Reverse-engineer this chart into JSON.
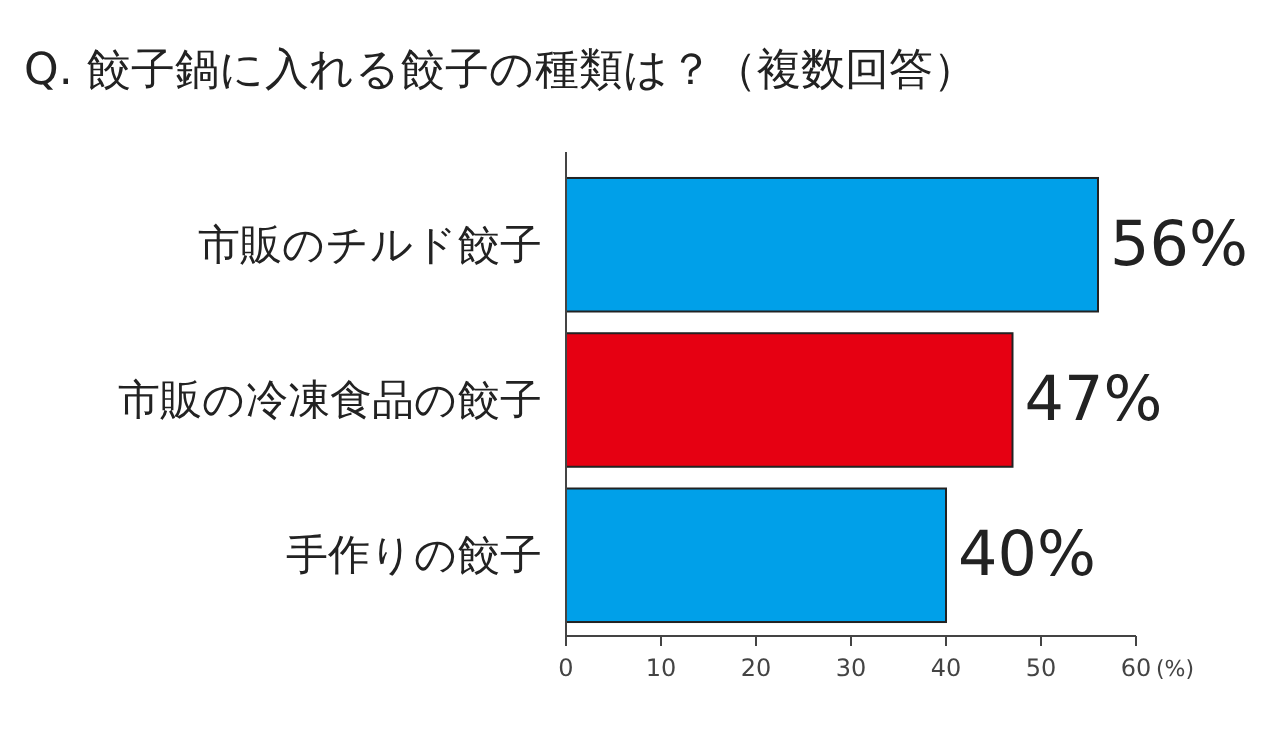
{
  "chart_data": {
    "type": "bar",
    "orientation": "horizontal",
    "title": "Q. 餃子鍋に入れる餃子の種類は？（複数回答）",
    "categories": [
      "市販のチルド餃子",
      "市販の冷凍食品の餃子",
      "手作りの餃子"
    ],
    "values": [
      56,
      47,
      40
    ],
    "colors": [
      "#00a0e9",
      "#e60012",
      "#00a0e9"
    ],
    "value_labels": [
      "56%",
      "47%",
      "40%"
    ],
    "xlabel": "(%)",
    "xlim": [
      0,
      60
    ],
    "xticks": [
      0,
      10,
      20,
      30,
      40,
      50,
      60
    ]
  }
}
